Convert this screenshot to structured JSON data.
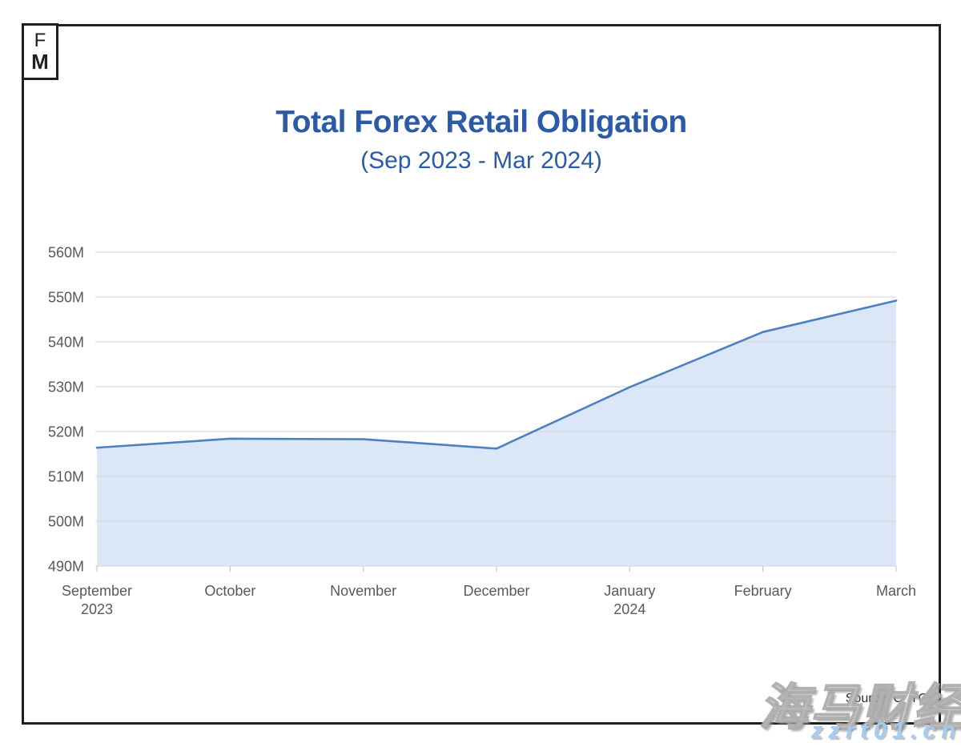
{
  "logo": {
    "line1": "F",
    "line2": "M"
  },
  "header": {
    "title": "Total Forex Retail Obligation",
    "subtitle": "(Sep 2023 - Mar 2024)"
  },
  "source": "Source: CFTC",
  "watermark": {
    "brand": "海马财经",
    "url": "zzrt01.cn"
  },
  "chart_data": {
    "type": "area",
    "title": "Total Forex Retail Obligation",
    "subtitle": "(Sep 2023 - Mar 2024)",
    "categories": [
      "September\n2023",
      "October",
      "November",
      "December",
      "January\n2024",
      "February",
      "March"
    ],
    "values": [
      516.4,
      518.4,
      518.3,
      516.2,
      529.9,
      542.2,
      549.2
    ],
    "unit": "M",
    "ylim": [
      490,
      560
    ],
    "y_ticks": [
      560,
      550,
      540,
      530,
      520,
      510,
      500,
      490
    ],
    "y_tick_labels": [
      "560M",
      "550M",
      "540M",
      "530M",
      "520M",
      "510M",
      "500M",
      "490M"
    ],
    "grid": true,
    "legend": "none",
    "colors": {
      "line": "#4E80C1",
      "fill": "#DBE7F7",
      "grid": "#D9D9D9",
      "tick": "#C9C9C9",
      "axis_text": "#595959",
      "title": "#2B5AA6"
    }
  }
}
